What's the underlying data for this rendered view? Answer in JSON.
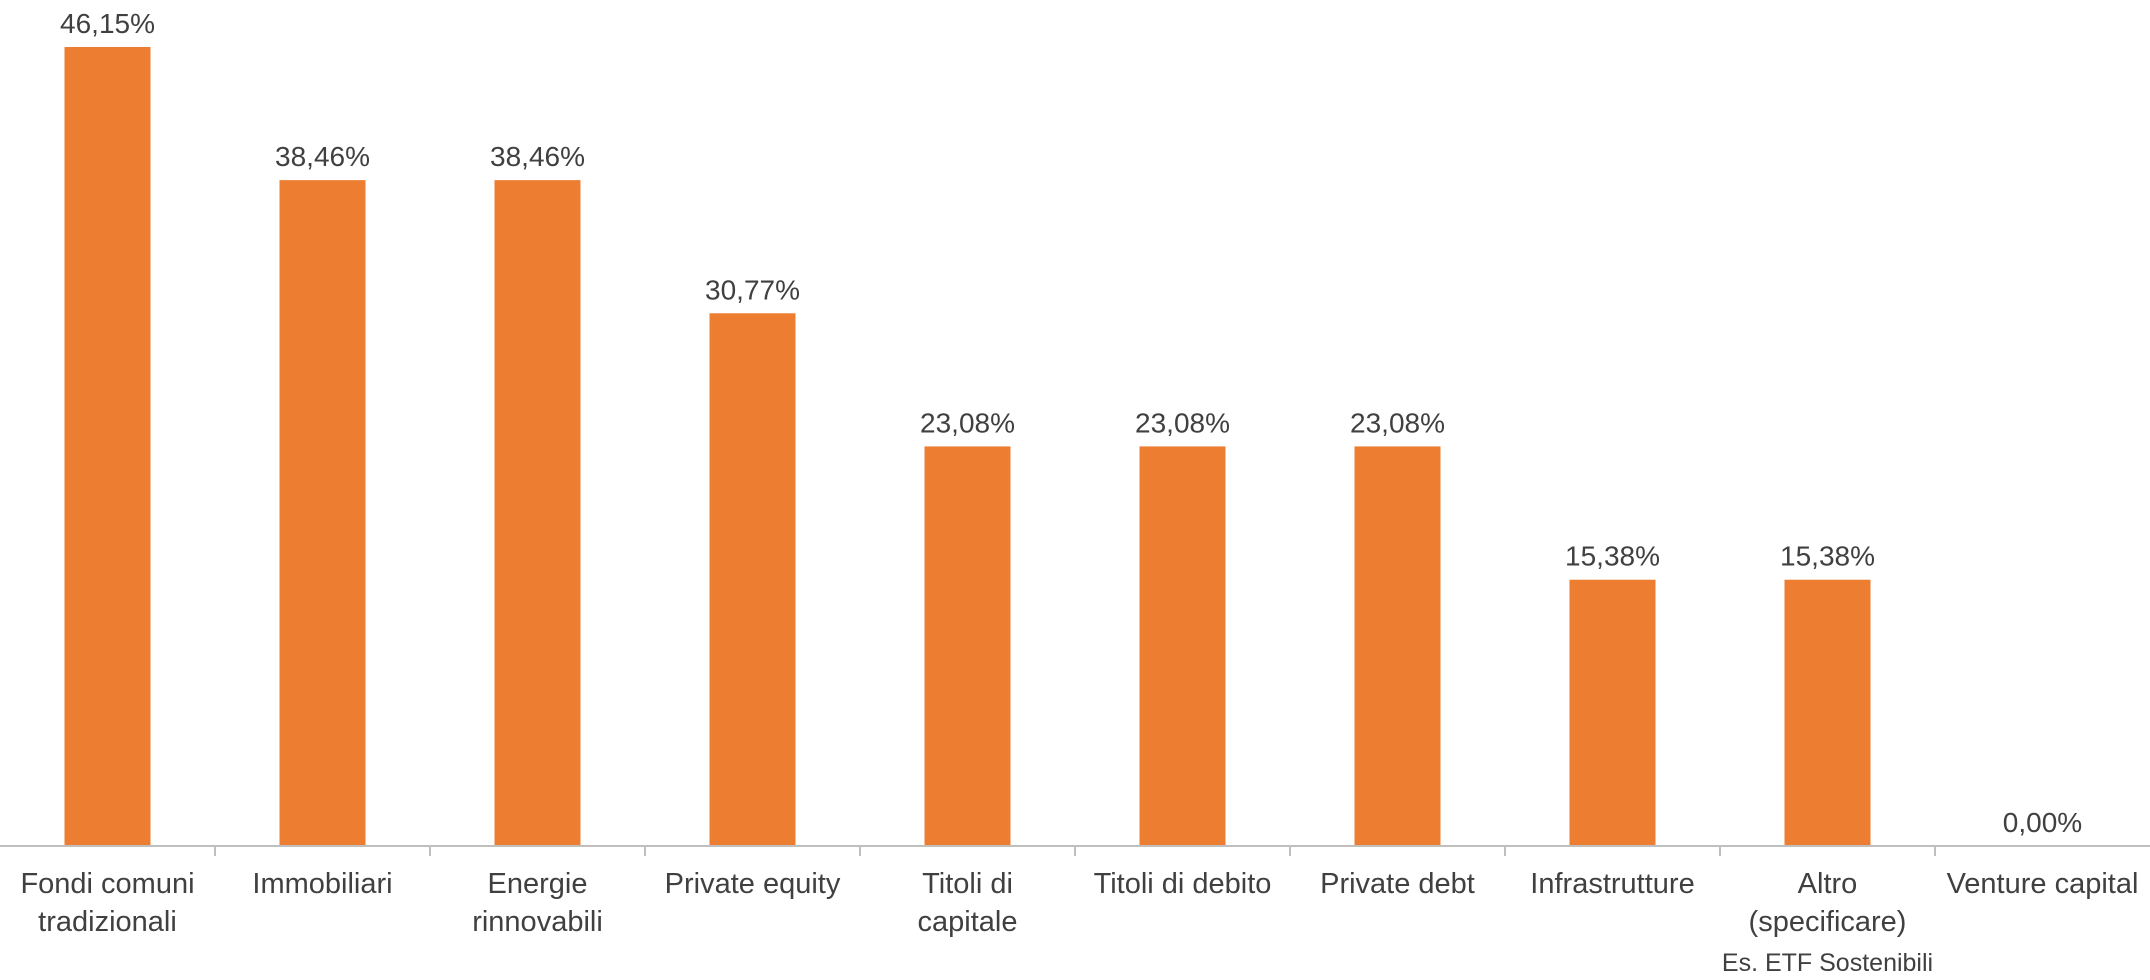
{
  "chart_data": {
    "type": "bar",
    "title": "",
    "xlabel": "",
    "ylabel": "",
    "categories": [
      [
        "Fondi comuni",
        "tradizionali"
      ],
      [
        "Immobiliari"
      ],
      [
        "Energie",
        "rinnovabili"
      ],
      [
        "Private equity"
      ],
      [
        "Titoli di",
        "capitale"
      ],
      [
        "Titoli di debito"
      ],
      [
        "Private debt"
      ],
      [
        "Infrastrutture"
      ],
      [
        "Altro",
        "(specificare)"
      ],
      [
        "Venture capital"
      ]
    ],
    "values": [
      46.15,
      38.46,
      38.46,
      30.77,
      23.08,
      23.08,
      23.08,
      15.38,
      15.38,
      0.0
    ],
    "value_labels": [
      "46,15%",
      "38,46%",
      "38,46%",
      "30,77%",
      "23,08%",
      "23,08%",
      "23,08%",
      "15,38%",
      "15,38%",
      "0,00%"
    ],
    "annotation": "Es. ETF Sostenibili",
    "annotation_category_index": 8,
    "ylim": [
      0,
      46.15
    ],
    "grid": false,
    "legend": "none",
    "colors": {
      "bar": "#ED7D31",
      "axis": "#BFBFBF",
      "text": "#404040"
    }
  }
}
